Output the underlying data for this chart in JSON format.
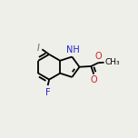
{
  "bg_color": "#efefea",
  "bond_color": "#000000",
  "bond_width": 1.3,
  "figsize": [
    1.52,
    1.52
  ],
  "dpi": 100,
  "xlim": [
    0,
    1
  ],
  "ylim": [
    0,
    1
  ]
}
